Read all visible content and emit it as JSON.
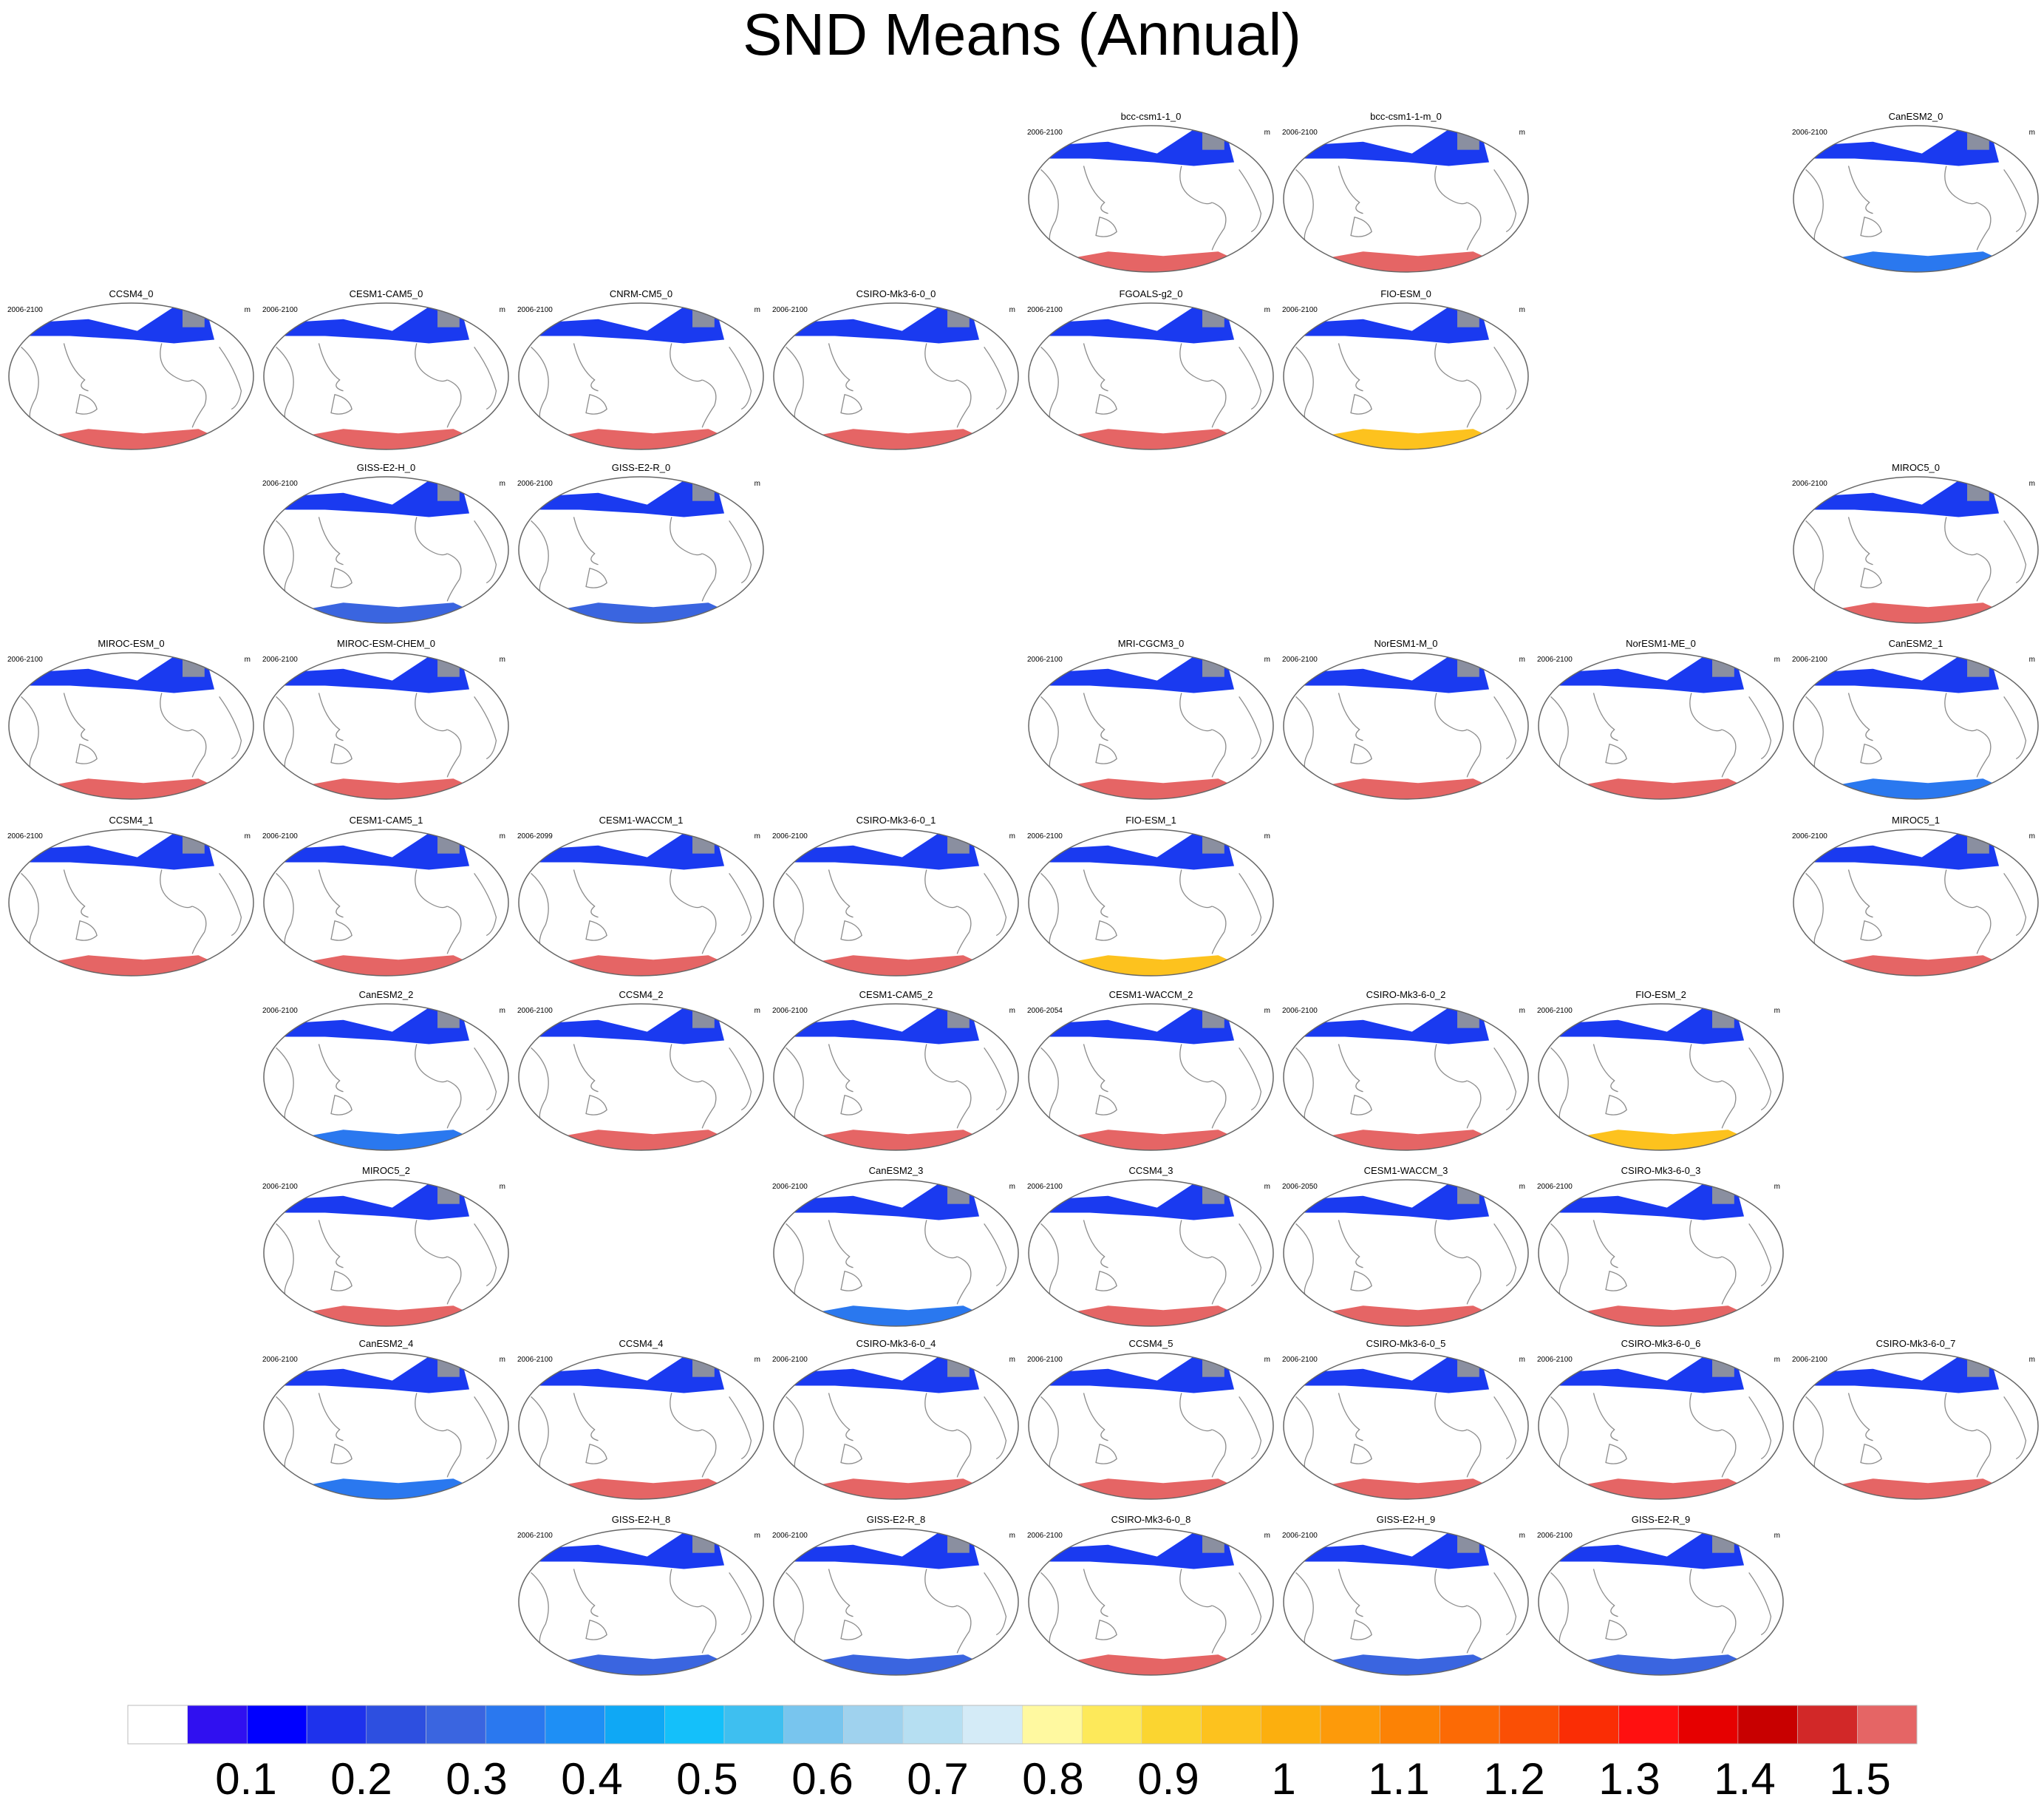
{
  "title": "SND Means (Annual)",
  "chart_data": {
    "type": "heatmap",
    "title": "SND Means (Annual)",
    "units": "m",
    "legend": "bottom",
    "colorbar": {
      "ticks": [
        "0.1",
        "0.2",
        "0.3",
        "0.4",
        "0.5",
        "0.6",
        "0.7",
        "0.8",
        "0.9",
        "1",
        "1.1",
        "1.2",
        "1.3",
        "1.4",
        "1.5"
      ],
      "colors": [
        "#ffffff",
        "#3010f0",
        "#0000ff",
        "#1e32ec",
        "#2d4fe0",
        "#3a65e0",
        "#2a78ef",
        "#1e8ff5",
        "#0fa8f5",
        "#14c0fa",
        "#3ebff0",
        "#78c5ee",
        "#9fd2ee",
        "#b6dff2",
        "#d4ebf7",
        "#fff9a0",
        "#fde95a",
        "#fbd530",
        "#fdc21e",
        "#fcaf0e",
        "#fd9a0a",
        "#fc8205",
        "#fc6a05",
        "#fa4f05",
        "#fa2d05",
        "#ff1010",
        "#e60000",
        "#c80000",
        "#d22828",
        "#e56565"
      ]
    },
    "panels": [
      {
        "row": 0,
        "col": 4,
        "name": "bcc-csm1-1_0",
        "period": "2006-2100",
        "unit": "m",
        "north": "#1a3af0",
        "south": "#e56565"
      },
      {
        "row": 0,
        "col": 5,
        "name": "bcc-csm1-1-m_0",
        "period": "2006-2100",
        "unit": "m",
        "north": "#1a3af0",
        "south": "#e56565"
      },
      {
        "row": 0,
        "col": 7,
        "name": "CanESM2_0",
        "period": "2006-2100",
        "unit": "m",
        "north": "#1a3af0",
        "south": "#2a78ef"
      },
      {
        "row": 1,
        "col": 0,
        "name": "CCSM4_0",
        "period": "2006-2100",
        "unit": "m",
        "north": "#1a3af0",
        "south": "#e56565"
      },
      {
        "row": 1,
        "col": 1,
        "name": "CESM1-CAM5_0",
        "period": "2006-2100",
        "unit": "m",
        "north": "#1a3af0",
        "south": "#e56565"
      },
      {
        "row": 1,
        "col": 2,
        "name": "CNRM-CM5_0",
        "period": "2006-2100",
        "unit": "m",
        "north": "#1a3af0",
        "south": "#e56565"
      },
      {
        "row": 1,
        "col": 3,
        "name": "CSIRO-Mk3-6-0_0",
        "period": "2006-2100",
        "unit": "m",
        "north": "#1a3af0",
        "south": "#e56565"
      },
      {
        "row": 1,
        "col": 4,
        "name": "FGOALS-g2_0",
        "period": "2006-2100",
        "unit": "m",
        "north": "#1a3af0",
        "south": "#e56565"
      },
      {
        "row": 1,
        "col": 5,
        "name": "FIO-ESM_0",
        "period": "2006-2100",
        "unit": "m",
        "north": "#1a3af0",
        "south": "#fdc21e"
      },
      {
        "row": 2,
        "col": 1,
        "name": "GISS-E2-H_0",
        "period": "2006-2100",
        "unit": "m",
        "north": "#1a3af0",
        "south": "#3a65e0"
      },
      {
        "row": 2,
        "col": 2,
        "name": "GISS-E2-R_0",
        "period": "2006-2100",
        "unit": "m",
        "north": "#1a3af0",
        "south": "#3a65e0"
      },
      {
        "row": 2,
        "col": 7,
        "name": "MIROC5_0",
        "period": "2006-2100",
        "unit": "m",
        "north": "#1a3af0",
        "south": "#e56565"
      },
      {
        "row": 3,
        "col": 0,
        "name": "MIROC-ESM_0",
        "period": "2006-2100",
        "unit": "m",
        "north": "#1a3af0",
        "south": "#e56565"
      },
      {
        "row": 3,
        "col": 1,
        "name": "MIROC-ESM-CHEM_0",
        "period": "2006-2100",
        "unit": "m",
        "north": "#1a3af0",
        "south": "#e56565"
      },
      {
        "row": 3,
        "col": 4,
        "name": "MRI-CGCM3_0",
        "period": "2006-2100",
        "unit": "m",
        "north": "#1a3af0",
        "south": "#e56565"
      },
      {
        "row": 3,
        "col": 5,
        "name": "NorESM1-M_0",
        "period": "2006-2100",
        "unit": "m",
        "north": "#1a3af0",
        "south": "#e56565"
      },
      {
        "row": 3,
        "col": 6,
        "name": "NorESM1-ME_0",
        "period": "2006-2100",
        "unit": "m",
        "north": "#1a3af0",
        "south": "#e56565"
      },
      {
        "row": 3,
        "col": 7,
        "name": "CanESM2_1",
        "period": "2006-2100",
        "unit": "m",
        "north": "#1a3af0",
        "south": "#2a78ef"
      },
      {
        "row": 4,
        "col": 0,
        "name": "CCSM4_1",
        "period": "2006-2100",
        "unit": "m",
        "north": "#1a3af0",
        "south": "#e56565"
      },
      {
        "row": 4,
        "col": 1,
        "name": "CESM1-CAM5_1",
        "period": "2006-2100",
        "unit": "m",
        "north": "#1a3af0",
        "south": "#e56565"
      },
      {
        "row": 4,
        "col": 2,
        "name": "CESM1-WACCM_1",
        "period": "2006-2099",
        "unit": "m",
        "north": "#1a3af0",
        "south": "#e56565"
      },
      {
        "row": 4,
        "col": 3,
        "name": "CSIRO-Mk3-6-0_1",
        "period": "2006-2100",
        "unit": "m",
        "north": "#1a3af0",
        "south": "#e56565"
      },
      {
        "row": 4,
        "col": 4,
        "name": "FIO-ESM_1",
        "period": "2006-2100",
        "unit": "m",
        "north": "#1a3af0",
        "south": "#fdc21e"
      },
      {
        "row": 4,
        "col": 7,
        "name": "MIROC5_1",
        "period": "2006-2100",
        "unit": "m",
        "north": "#1a3af0",
        "south": "#e56565"
      },
      {
        "row": 5,
        "col": 1,
        "name": "CanESM2_2",
        "period": "2006-2100",
        "unit": "m",
        "north": "#1a3af0",
        "south": "#2a78ef"
      },
      {
        "row": 5,
        "col": 2,
        "name": "CCSM4_2",
        "period": "2006-2100",
        "unit": "m",
        "north": "#1a3af0",
        "south": "#e56565"
      },
      {
        "row": 5,
        "col": 3,
        "name": "CESM1-CAM5_2",
        "period": "2006-2100",
        "unit": "m",
        "north": "#1a3af0",
        "south": "#e56565"
      },
      {
        "row": 5,
        "col": 4,
        "name": "CESM1-WACCM_2",
        "period": "2006-2054",
        "unit": "m",
        "north": "#1a3af0",
        "south": "#e56565"
      },
      {
        "row": 5,
        "col": 5,
        "name": "CSIRO-Mk3-6-0_2",
        "period": "2006-2100",
        "unit": "m",
        "north": "#1a3af0",
        "south": "#e56565"
      },
      {
        "row": 5,
        "col": 6,
        "name": "FIO-ESM_2",
        "period": "2006-2100",
        "unit": "m",
        "north": "#1a3af0",
        "south": "#fdc21e"
      },
      {
        "row": 6,
        "col": 1,
        "name": "MIROC5_2",
        "period": "2006-2100",
        "unit": "m",
        "north": "#1a3af0",
        "south": "#e56565"
      },
      {
        "row": 6,
        "col": 3,
        "name": "CanESM2_3",
        "period": "2006-2100",
        "unit": "m",
        "north": "#1a3af0",
        "south": "#2a78ef"
      },
      {
        "row": 6,
        "col": 4,
        "name": "CCSM4_3",
        "period": "2006-2100",
        "unit": "m",
        "north": "#1a3af0",
        "south": "#e56565"
      },
      {
        "row": 6,
        "col": 5,
        "name": "CESM1-WACCM_3",
        "period": "2006-2050",
        "unit": "m",
        "north": "#1a3af0",
        "south": "#e56565"
      },
      {
        "row": 6,
        "col": 6,
        "name": "CSIRO-Mk3-6-0_3",
        "period": "2006-2100",
        "unit": "m",
        "north": "#1a3af0",
        "south": "#e56565"
      },
      {
        "row": 7,
        "col": 1,
        "name": "CanESM2_4",
        "period": "2006-2100",
        "unit": "m",
        "north": "#1a3af0",
        "south": "#2a78ef"
      },
      {
        "row": 7,
        "col": 2,
        "name": "CCSM4_4",
        "period": "2006-2100",
        "unit": "m",
        "north": "#1a3af0",
        "south": "#e56565"
      },
      {
        "row": 7,
        "col": 3,
        "name": "CSIRO-Mk3-6-0_4",
        "period": "2006-2100",
        "unit": "m",
        "north": "#1a3af0",
        "south": "#e56565"
      },
      {
        "row": 7,
        "col": 4,
        "name": "CCSM4_5",
        "period": "2006-2100",
        "unit": "m",
        "north": "#1a3af0",
        "south": "#e56565"
      },
      {
        "row": 7,
        "col": 5,
        "name": "CSIRO-Mk3-6-0_5",
        "period": "2006-2100",
        "unit": "m",
        "north": "#1a3af0",
        "south": "#e56565"
      },
      {
        "row": 7,
        "col": 6,
        "name": "CSIRO-Mk3-6-0_6",
        "period": "2006-2100",
        "unit": "m",
        "north": "#1a3af0",
        "south": "#e56565"
      },
      {
        "row": 7,
        "col": 7,
        "name": "CSIRO-Mk3-6-0_7",
        "period": "2006-2100",
        "unit": "m",
        "north": "#1a3af0",
        "south": "#e56565"
      },
      {
        "row": 8,
        "col": 2,
        "name": "GISS-E2-H_8",
        "period": "2006-2100",
        "unit": "m",
        "north": "#1a3af0",
        "south": "#3a65e0"
      },
      {
        "row": 8,
        "col": 3,
        "name": "GISS-E2-R_8",
        "period": "2006-2100",
        "unit": "m",
        "north": "#1a3af0",
        "south": "#3a65e0"
      },
      {
        "row": 8,
        "col": 4,
        "name": "CSIRO-Mk3-6-0_8",
        "period": "2006-2100",
        "unit": "m",
        "north": "#1a3af0",
        "south": "#e56565"
      },
      {
        "row": 8,
        "col": 5,
        "name": "GISS-E2-H_9",
        "period": "2006-2100",
        "unit": "m",
        "north": "#1a3af0",
        "south": "#3a65e0"
      },
      {
        "row": 8,
        "col": 6,
        "name": "GISS-E2-R_9",
        "period": "2006-2100",
        "unit": "m",
        "north": "#1a3af0",
        "south": "#3a65e0"
      }
    ]
  }
}
